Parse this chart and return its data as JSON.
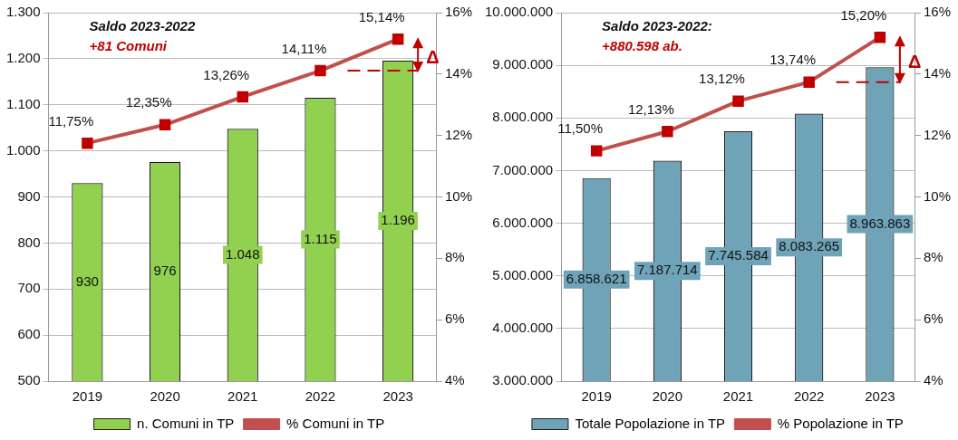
{
  "chart_data": [
    {
      "type": "bar",
      "categories": [
        "2019",
        "2020",
        "2021",
        "2022",
        "2023"
      ],
      "series": [
        {
          "name": "n. Comuni in TP",
          "color": "#92d050",
          "values": [
            930,
            976,
            1048,
            1115,
            1196
          ],
          "value_labels": [
            "930",
            "976",
            "1.048",
            "1.115",
            "1.196"
          ]
        },
        {
          "name": "% Comuni in TP",
          "type": "line",
          "axis": "y2",
          "color": "#c0504d",
          "values": [
            11.75,
            12.35,
            13.26,
            14.11,
            15.14
          ],
          "value_labels": [
            "11,75%",
            "12,35%",
            "13,26%",
            "14,11%",
            "15,14%"
          ]
        }
      ],
      "ylim": [
        500,
        1300
      ],
      "yticks": [
        500,
        600,
        700,
        800,
        900,
        {
          "value": 1000,
          "label": "1.000"
        },
        {
          "value": 1100,
          "label": "1.100"
        },
        {
          "value": 1200,
          "label": "1.200"
        },
        {
          "value": 1300,
          "label": "1.300"
        }
      ],
      "y2lim": [
        4,
        16
      ],
      "y2ticks": [
        {
          "value": 4,
          "label": "4%"
        },
        {
          "value": 6,
          "label": "6%"
        },
        {
          "value": 8,
          "label": "8%"
        },
        {
          "value": 10,
          "label": "10%"
        },
        {
          "value": 12,
          "label": "12%"
        },
        {
          "value": 14,
          "label": "14%"
        },
        {
          "value": 16,
          "label": "16%"
        }
      ],
      "annotations": [
        "Saldo 2023-2022",
        "+81 Comuni",
        "Δ"
      ],
      "grid": "y",
      "legend": "bottom",
      "marker": "square"
    },
    {
      "type": "bar",
      "categories": [
        "2019",
        "2020",
        "2021",
        "2022",
        "2023"
      ],
      "series": [
        {
          "name": "Totale Popolazione in TP",
          "color": "#6fa3b8",
          "values": [
            6858621,
            7187714,
            7745584,
            8083265,
            8963863
          ],
          "value_labels": [
            "6.858.621",
            "7.187.714",
            "7.745.584",
            "8.083.265",
            "8.963.863"
          ]
        },
        {
          "name": "% Popolazione in TP",
          "type": "line",
          "axis": "y2",
          "color": "#c0504d",
          "values": [
            11.5,
            12.13,
            13.12,
            13.74,
            15.2
          ],
          "value_labels": [
            "11,50%",
            "12,13%",
            "13,12%",
            "13,74%",
            "15,20%"
          ]
        }
      ],
      "ylim": [
        3000000,
        10000000
      ],
      "yticks": [
        {
          "value": 3000000,
          "label": "3.000.000"
        },
        {
          "value": 4000000,
          "label": "4.000.000"
        },
        {
          "value": 5000000,
          "label": "5.000.000"
        },
        {
          "value": 6000000,
          "label": "6.000.000"
        },
        {
          "value": 7000000,
          "label": "7.000.000"
        },
        {
          "value": 8000000,
          "label": "8.000.000"
        },
        {
          "value": 9000000,
          "label": "9.000.000"
        },
        {
          "value": 10000000,
          "label": "10.000.000"
        }
      ],
      "y2lim": [
        4,
        16
      ],
      "y2ticks": [
        {
          "value": 4,
          "label": "4%"
        },
        {
          "value": 6,
          "label": "6%"
        },
        {
          "value": 8,
          "label": "8%"
        },
        {
          "value": 10,
          "label": "10%"
        },
        {
          "value": 12,
          "label": "12%"
        },
        {
          "value": 14,
          "label": "14%"
        },
        {
          "value": 16,
          "label": "16%"
        }
      ],
      "annotations": [
        "Saldo 2023-2022:",
        "+880.598 ab.",
        "Δ"
      ],
      "grid": "y",
      "legend": "bottom",
      "marker": "square"
    }
  ]
}
